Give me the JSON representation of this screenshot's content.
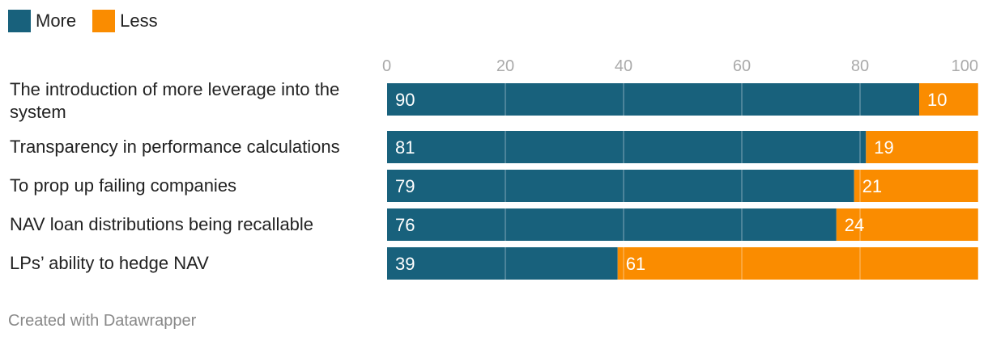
{
  "legend": [
    {
      "label": "More",
      "color": "#18617c"
    },
    {
      "label": "Less",
      "color": "#fa8c00"
    }
  ],
  "chart_data": {
    "type": "bar",
    "orientation": "horizontal",
    "stacked": true,
    "categories": [
      [
        "The introduction of more leverage into the",
        "system"
      ],
      [
        "Transparency in performance calculations"
      ],
      [
        "To prop up failing companies"
      ],
      [
        "NAV loan distributions being recallable"
      ],
      [
        "LPs’ ability to hedge NAV"
      ]
    ],
    "series": [
      {
        "name": "More",
        "color": "#18617c",
        "values": [
          90,
          81,
          79,
          76,
          39
        ]
      },
      {
        "name": "Less",
        "color": "#fa8c00",
        "values": [
          10,
          19,
          21,
          24,
          61
        ]
      }
    ],
    "xlim": [
      0,
      100
    ],
    "xticks": [
      0,
      20,
      40,
      60,
      80,
      100
    ],
    "grid": true,
    "legend_position": "top-left"
  },
  "footer": "Created with Datawrapper"
}
